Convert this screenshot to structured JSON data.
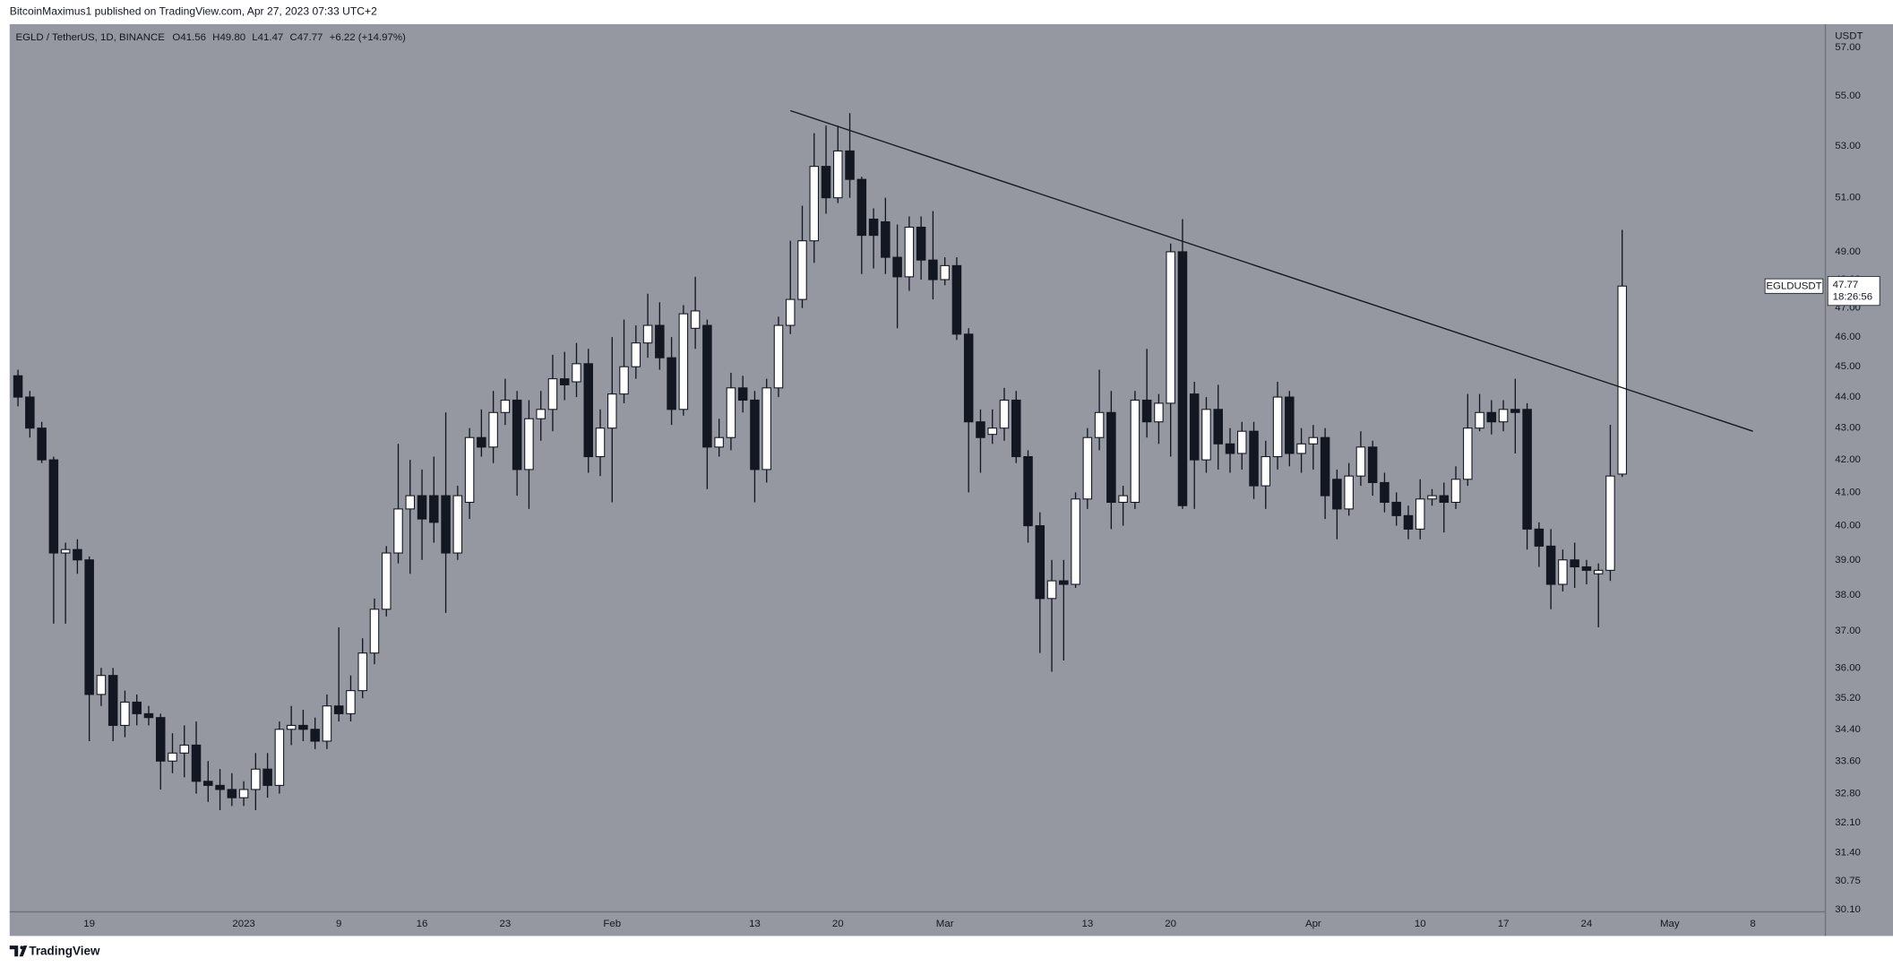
{
  "header": {
    "published": "BitcoinMaximus1 published on TradingView.com, Apr 27, 2023 07:33 UTC+2"
  },
  "footer": {
    "brand": "TradingView"
  },
  "chart_data": {
    "type": "candlestick",
    "title": "EGLD / TetherUS, 1D, BINANCE",
    "readout": {
      "labels": [
        "O",
        "H",
        "L",
        "C"
      ],
      "values": [
        "41.56",
        "49.80",
        "41.47",
        "47.77"
      ],
      "change": "+6.22 (+14.97%)"
    },
    "name": "EGLDUSDT",
    "countdown": "18:26:56",
    "y_unit": "USDT",
    "up_color": "#ffffff",
    "down_color": "#131722",
    "background": "#9598a1",
    "y_scale": "log",
    "grid": false,
    "xlim": [
      12.3,
      165.1
    ],
    "ylim": [
      30.05,
      58.0
    ],
    "xticks": [
      19,
      {
        "value": 32,
        "label": "2023"
      },
      {
        "value": 40,
        "label": "9"
      },
      {
        "value": 47,
        "label": "16"
      },
      {
        "value": 54,
        "label": "23"
      },
      {
        "value": 63,
        "label": "Feb"
      },
      {
        "value": 75,
        "label": "13"
      },
      {
        "value": 82,
        "label": "20"
      },
      {
        "value": 91,
        "label": "Mar"
      },
      {
        "value": 103,
        "label": "13"
      },
      {
        "value": 110,
        "label": "20"
      },
      {
        "value": 122,
        "label": "Apr"
      },
      {
        "value": 131,
        "label": "10"
      },
      {
        "value": 138,
        "label": "17"
      },
      {
        "value": 145,
        "label": "24"
      },
      {
        "value": 152,
        "label": "May"
      },
      {
        "value": 159,
        "label": "8"
      }
    ],
    "yticks": [
      {
        "value": 57,
        "label": "57.00"
      },
      {
        "value": 55,
        "label": "55.00"
      },
      {
        "value": 53,
        "label": "53.00"
      },
      {
        "value": 51,
        "label": "51.00"
      },
      {
        "value": 49,
        "label": "49.00"
      },
      {
        "value": 48,
        "label": "48.00"
      },
      {
        "value": 47,
        "label": "47.00"
      },
      {
        "value": 46,
        "label": "46.00"
      },
      {
        "value": 45,
        "label": "45.00"
      },
      {
        "value": 44,
        "label": "44.00"
      },
      {
        "value": 43,
        "label": "43.00"
      },
      {
        "value": 42,
        "label": "42.00"
      },
      {
        "value": 41,
        "label": "41.00"
      },
      {
        "value": 40,
        "label": "40.00"
      },
      {
        "value": 39,
        "label": "39.00"
      },
      {
        "value": 38,
        "label": "38.00"
      },
      {
        "value": 37,
        "label": "37.00"
      },
      {
        "value": 36,
        "label": "36.00"
      },
      {
        "value": 35.2,
        "label": "35.20"
      },
      {
        "value": 34.4,
        "label": "34.40"
      },
      {
        "value": 33.6,
        "label": "33.60"
      },
      {
        "value": 32.8,
        "label": "32.80"
      },
      {
        "value": 32.1,
        "label": "32.10"
      },
      {
        "value": 31.4,
        "label": "31.40"
      },
      {
        "value": 30.75,
        "label": "30.75"
      },
      {
        "value": 30.1,
        "label": "30.10"
      }
    ],
    "x": [
      13,
      14,
      15,
      16,
      17,
      18,
      19,
      20,
      21,
      22,
      23,
      24,
      25,
      26,
      27,
      28,
      29,
      30,
      31,
      32,
      33,
      34,
      35,
      36,
      37,
      38,
      39,
      40,
      41,
      42,
      43,
      44,
      45,
      46,
      47,
      48,
      49,
      50,
      51,
      52,
      53,
      54,
      55,
      56,
      57,
      58,
      59,
      60,
      61,
      62,
      63,
      64,
      65,
      66,
      67,
      68,
      69,
      70,
      71,
      72,
      73,
      74,
      75,
      76,
      77,
      78,
      79,
      80,
      81,
      82,
      83,
      84,
      85,
      86,
      87,
      88,
      89,
      90,
      91,
      92,
      93,
      94,
      95,
      96,
      97,
      98,
      99,
      100,
      101,
      102,
      103,
      104,
      105,
      106,
      107,
      108,
      109,
      110,
      111,
      112,
      113,
      114,
      115,
      116,
      117,
      118,
      119,
      120,
      121,
      122,
      123,
      124,
      125,
      126,
      127,
      128,
      129,
      130,
      131,
      132,
      133,
      134,
      135,
      136,
      137,
      138,
      139,
      140,
      141,
      142,
      143,
      144,
      145,
      146,
      147,
      148
    ],
    "open": [
      44.7,
      44.0,
      43.0,
      42.0,
      39.2,
      39.3,
      39.0,
      35.3,
      35.8,
      34.5,
      35.1,
      34.8,
      34.7,
      33.6,
      33.8,
      34.0,
      33.1,
      33.0,
      32.9,
      32.7,
      32.9,
      33.4,
      33.0,
      34.4,
      34.5,
      34.4,
      34.1,
      35.0,
      34.8,
      35.4,
      36.4,
      37.6,
      39.2,
      40.5,
      40.9,
      40.9,
      40.9,
      39.2,
      40.7,
      42.7,
      42.4,
      43.5,
      43.9,
      41.7,
      43.3,
      43.6,
      44.6,
      44.5,
      45.1,
      42.1,
      43.0,
      44.1,
      45.0,
      45.8,
      46.4,
      45.3,
      43.6,
      46.3,
      46.4,
      42.4,
      42.7,
      44.3,
      43.9,
      41.7,
      44.3,
      46.4,
      47.3,
      49.4,
      52.2,
      51.0,
      52.8,
      51.7,
      50.2,
      50.1,
      48.8,
      48.1,
      49.9,
      48.7,
      48.0,
      48.5,
      46.1,
      43.2,
      42.8,
      43.0,
      43.9,
      42.1,
      40.0,
      37.9,
      38.4,
      38.3,
      40.8,
      42.7,
      43.5,
      40.7,
      40.7,
      43.9,
      43.2,
      43.8,
      49.0,
      44.1,
      42.0,
      43.6,
      42.5,
      42.2,
      42.9,
      41.2,
      42.1,
      44.0,
      42.2,
      42.5,
      42.7,
      41.4,
      40.5,
      41.5,
      42.4,
      41.3,
      40.7,
      40.3,
      39.9,
      40.8,
      40.9,
      40.7,
      41.4,
      43.0,
      43.5,
      43.2,
      43.6,
      43.6,
      39.9,
      39.4,
      38.3,
      39.0,
      38.8,
      38.6,
      38.7,
      41.56
    ],
    "high": [
      44.9,
      44.2,
      43.2,
      42.1,
      39.5,
      39.6,
      39.1,
      36.0,
      36.0,
      35.4,
      35.3,
      35.0,
      34.8,
      34.3,
      34.5,
      34.6,
      33.6,
      33.4,
      33.3,
      33.1,
      33.8,
      33.8,
      34.6,
      35.0,
      34.9,
      34.7,
      35.3,
      37.1,
      35.8,
      36.8,
      37.9,
      39.4,
      42.5,
      42.0,
      41.7,
      42.1,
      43.5,
      41.2,
      43.0,
      43.6,
      44.2,
      44.6,
      44.2,
      43.9,
      44.2,
      45.4,
      45.5,
      45.8,
      45.6,
      43.6,
      46.0,
      46.6,
      46.4,
      47.5,
      47.2,
      46.0,
      47.1,
      48.1,
      46.6,
      43.3,
      44.8,
      44.7,
      44.2,
      44.6,
      46.7,
      49.4,
      50.7,
      53.5,
      53.8,
      53.8,
      54.3,
      51.8,
      50.6,
      51.0,
      50.0,
      50.3,
      50.3,
      50.5,
      48.8,
      48.8,
      46.3,
      43.6,
      43.6,
      44.3,
      44.2,
      42.3,
      40.4,
      39.0,
      39.0,
      41.0,
      43.0,
      44.9,
      44.2,
      41.2,
      44.2,
      45.6,
      44.1,
      49.3,
      50.2,
      44.5,
      44.0,
      44.4,
      43.0,
      43.2,
      43.2,
      42.6,
      44.5,
      44.2,
      43.0,
      43.1,
      43.0,
      41.7,
      41.9,
      42.9,
      42.6,
      41.6,
      41.0,
      40.6,
      41.4,
      41.1,
      41.3,
      41.8,
      44.1,
      44.1,
      43.9,
      43.9,
      44.6,
      43.8,
      40.1,
      39.9,
      39.3,
      39.5,
      39.0,
      38.9,
      43.1,
      49.8
    ],
    "low": [
      43.7,
      42.7,
      41.9,
      37.2,
      37.2,
      38.6,
      34.1,
      35.0,
      34.1,
      34.2,
      34.5,
      34.5,
      32.9,
      33.3,
      33.2,
      32.8,
      32.6,
      32.4,
      32.5,
      32.5,
      32.4,
      32.7,
      32.8,
      34.0,
      34.1,
      33.9,
      33.9,
      34.6,
      34.6,
      35.2,
      36.1,
      37.4,
      38.9,
      38.6,
      39.0,
      39.5,
      37.5,
      39.0,
      40.2,
      42.1,
      41.9,
      43.1,
      40.9,
      40.5,
      42.6,
      42.9,
      43.9,
      44.0,
      41.6,
      41.5,
      40.7,
      43.8,
      44.6,
      45.3,
      44.9,
      43.1,
      43.4,
      45.6,
      41.1,
      42.1,
      42.3,
      43.5,
      40.7,
      41.3,
      44.0,
      46.1,
      47.0,
      48.6,
      50.4,
      50.8,
      51.0,
      48.2,
      48.4,
      48.2,
      46.3,
      47.6,
      48.0,
      47.3,
      47.8,
      45.9,
      41.0,
      41.6,
      42.5,
      42.6,
      41.9,
      39.5,
      36.4,
      35.9,
      36.2,
      38.2,
      40.5,
      42.3,
      39.9,
      40.0,
      40.5,
      42.7,
      42.5,
      42.1,
      40.5,
      40.5,
      41.6,
      41.7,
      41.6,
      41.7,
      40.8,
      40.5,
      41.7,
      41.8,
      41.6,
      41.7,
      40.2,
      39.6,
      40.3,
      41.2,
      40.9,
      40.4,
      40.0,
      39.6,
      39.6,
      40.6,
      39.8,
      40.5,
      41.2,
      42.9,
      42.8,
      42.9,
      42.2,
      39.3,
      38.8,
      37.6,
      38.1,
      38.2,
      38.3,
      37.1,
      38.4,
      41.47
    ],
    "close": [
      44.0,
      43.0,
      42.0,
      39.2,
      39.3,
      39.0,
      35.3,
      35.8,
      34.5,
      35.1,
      34.8,
      34.7,
      33.6,
      33.8,
      34.0,
      33.1,
      33.0,
      32.9,
      32.7,
      32.9,
      33.4,
      33.0,
      34.4,
      34.5,
      34.4,
      34.1,
      35.0,
      34.8,
      35.4,
      36.4,
      37.6,
      39.2,
      40.5,
      40.9,
      40.2,
      40.1,
      39.2,
      40.9,
      42.7,
      42.4,
      43.5,
      43.9,
      41.7,
      43.3,
      43.6,
      44.6,
      44.4,
      45.1,
      42.1,
      43.0,
      44.1,
      45.0,
      45.8,
      46.4,
      45.3,
      43.6,
      46.8,
      46.9,
      42.4,
      42.7,
      44.3,
      43.9,
      41.7,
      44.3,
      46.4,
      47.3,
      49.4,
      52.2,
      51.0,
      52.8,
      51.7,
      49.6,
      49.6,
      48.8,
      48.1,
      49.9,
      48.7,
      48.0,
      48.5,
      46.1,
      43.2,
      42.7,
      43.0,
      43.9,
      42.1,
      40.0,
      37.9,
      38.4,
      38.3,
      40.8,
      42.7,
      43.5,
      40.7,
      40.9,
      43.9,
      43.2,
      43.8,
      49.0,
      40.6,
      42.0,
      43.6,
      42.5,
      42.2,
      42.9,
      41.2,
      42.1,
      44.0,
      42.2,
      42.5,
      42.7,
      40.9,
      40.5,
      41.5,
      42.4,
      41.3,
      40.7,
      40.3,
      39.9,
      40.8,
      40.9,
      40.7,
      41.4,
      43.0,
      43.5,
      43.2,
      43.6,
      43.5,
      39.9,
      39.4,
      38.3,
      39.0,
      38.8,
      38.7,
      38.7,
      41.5,
      47.77
    ],
    "trendline": {
      "x": [
        78,
        159
      ],
      "values": [
        54.4,
        42.9
      ]
    }
  }
}
